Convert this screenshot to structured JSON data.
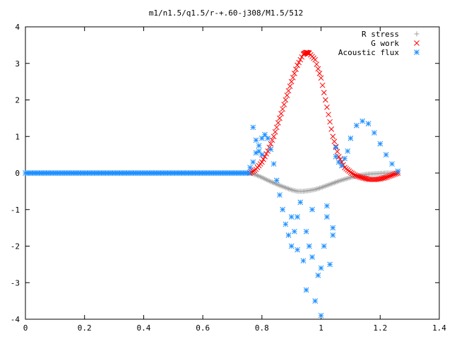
{
  "chart_data": {
    "type": "scatter",
    "title": "m1/n1.5/q1.5/r-+.60-j308/M1.5/512",
    "xlabel": "",
    "ylabel": "",
    "xlim": [
      0,
      1.4
    ],
    "ylim": [
      -4,
      4
    ],
    "x_ticks": [
      "0",
      "0.2",
      "0.4",
      "0.6",
      "0.8",
      "1",
      "1.2",
      "1.4"
    ],
    "y_ticks": [
      "4",
      "3",
      "2",
      "1",
      "0",
      "-1",
      "-2",
      "-3",
      "-4"
    ],
    "grid": false,
    "legend_position": "top-right",
    "series": [
      {
        "name": "R stress",
        "marker": "plus",
        "color": "#a0a0a0",
        "points": [
          [
            0.76,
            0.0
          ],
          [
            0.78,
            -0.05
          ],
          [
            0.8,
            -0.12
          ],
          [
            0.82,
            -0.2
          ],
          [
            0.84,
            -0.27
          ],
          [
            0.86,
            -0.34
          ],
          [
            0.88,
            -0.4
          ],
          [
            0.9,
            -0.46
          ],
          [
            0.92,
            -0.5
          ],
          [
            0.94,
            -0.5
          ],
          [
            0.96,
            -0.48
          ],
          [
            0.98,
            -0.45
          ],
          [
            1.0,
            -0.4
          ],
          [
            1.02,
            -0.34
          ],
          [
            1.04,
            -0.28
          ],
          [
            1.06,
            -0.22
          ],
          [
            1.08,
            -0.17
          ],
          [
            1.1,
            -0.12
          ],
          [
            1.12,
            -0.08
          ],
          [
            1.14,
            -0.05
          ],
          [
            1.16,
            -0.03
          ],
          [
            1.18,
            -0.02
          ],
          [
            1.2,
            -0.01
          ],
          [
            1.22,
            0.0
          ],
          [
            1.24,
            0.0
          ],
          [
            1.26,
            0.0
          ]
        ]
      },
      {
        "name": "G work",
        "marker": "cross",
        "color": "#ff0000",
        "points": [
          [
            0.76,
            0.0
          ],
          [
            0.78,
            0.1
          ],
          [
            0.8,
            0.3
          ],
          [
            0.82,
            0.6
          ],
          [
            0.84,
            1.0
          ],
          [
            0.86,
            1.5
          ],
          [
            0.88,
            2.0
          ],
          [
            0.9,
            2.5
          ],
          [
            0.92,
            2.95
          ],
          [
            0.94,
            3.25
          ],
          [
            0.95,
            3.3
          ],
          [
            0.96,
            3.28
          ],
          [
            0.98,
            3.1
          ],
          [
            1.0,
            2.6
          ],
          [
            1.02,
            1.8
          ],
          [
            1.04,
            1.0
          ],
          [
            1.06,
            0.45
          ],
          [
            1.08,
            0.15
          ],
          [
            1.1,
            0.02
          ],
          [
            1.12,
            -0.08
          ],
          [
            1.14,
            -0.13
          ],
          [
            1.16,
            -0.17
          ],
          [
            1.18,
            -0.18
          ],
          [
            1.2,
            -0.16
          ],
          [
            1.22,
            -0.12
          ],
          [
            1.24,
            -0.06
          ],
          [
            1.26,
            0.0
          ]
        ]
      },
      {
        "name": "Acoustic flux",
        "marker": "star",
        "color": "#1e90ff",
        "points": [
          [
            0.76,
            0.15
          ],
          [
            0.77,
            0.3
          ],
          [
            0.78,
            0.55
          ],
          [
            0.79,
            0.75
          ],
          [
            0.8,
            0.95
          ],
          [
            0.81,
            1.05
          ],
          [
            0.82,
            0.95
          ],
          [
            0.83,
            0.65
          ],
          [
            0.84,
            0.25
          ],
          [
            0.85,
            -0.2
          ],
          [
            0.86,
            -0.6
          ],
          [
            0.87,
            -1.0
          ],
          [
            0.88,
            -1.4
          ],
          [
            0.89,
            -1.7
          ],
          [
            0.9,
            -2.0
          ],
          [
            0.91,
            -1.6
          ],
          [
            0.92,
            -1.2
          ],
          [
            0.93,
            -0.8
          ],
          [
            0.94,
            -2.4
          ],
          [
            0.95,
            -3.2
          ],
          [
            0.96,
            -2.0
          ],
          [
            0.97,
            -1.0
          ],
          [
            0.98,
            -3.5
          ],
          [
            0.99,
            -2.8
          ],
          [
            1.0,
            -3.9
          ],
          [
            1.01,
            -2.0
          ],
          [
            1.02,
            -1.2
          ],
          [
            1.03,
            -2.5
          ],
          [
            1.04,
            -1.5
          ],
          [
            1.05,
            0.7
          ],
          [
            1.06,
            0.3
          ],
          [
            1.07,
            0.2
          ],
          [
            1.08,
            0.4
          ],
          [
            1.09,
            0.6
          ],
          [
            1.1,
            0.95
          ],
          [
            1.12,
            1.3
          ],
          [
            1.14,
            1.42
          ],
          [
            1.16,
            1.35
          ],
          [
            1.18,
            1.1
          ],
          [
            1.2,
            0.8
          ],
          [
            1.22,
            0.5
          ],
          [
            1.24,
            0.25
          ],
          [
            1.26,
            0.05
          ],
          [
            0.77,
            1.25
          ],
          [
            0.78,
            0.9
          ],
          [
            0.79,
            0.6
          ],
          [
            0.8,
            0.5
          ],
          [
            0.9,
            -1.2
          ],
          [
            0.92,
            -2.1
          ],
          [
            0.95,
            -1.6
          ],
          [
            0.97,
            -2.3
          ],
          [
            1.0,
            -2.6
          ],
          [
            1.02,
            -0.9
          ],
          [
            1.04,
            -1.7
          ],
          [
            1.05,
            0.45
          ]
        ]
      }
    ]
  }
}
